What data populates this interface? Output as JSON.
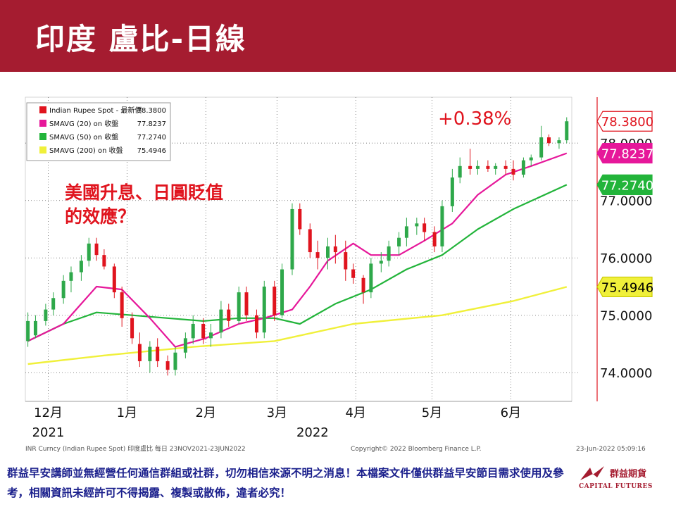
{
  "slide": {
    "title": "印度 盧比-日線",
    "annotation_lines": [
      "美國升息、日圓貶值",
      "的效應？"
    ],
    "pct_change": "+0.38%"
  },
  "footer": {
    "disclaimer": "群益早安講師並無經營任何通信群組或社群，切勿相信來源不明之消息！本檔案文件僅供群益早安節目需求使用及參考，相關資訊未經許可不得揭露、複製或散佈，違者必究！",
    "logo_cn": "群益期貨",
    "logo_en": "CAPITAL FUTURES"
  },
  "colors": {
    "brand": "#a51c30",
    "candle_up": "#2ea84a",
    "candle_down": "#e0141e",
    "sma20": "#e6179a",
    "sma50": "#22b43a",
    "sma200": "#f0f03a",
    "disclaimer": "#1a1f8c"
  },
  "chart_data": {
    "type": "candlestick",
    "ylim": [
      73.5,
      78.8
    ],
    "y_ticks": [
      {
        "value": 74.0,
        "label": "74.0000"
      },
      {
        "value": 75.0,
        "label": "75.0000"
      },
      {
        "value": 76.0,
        "label": "76.0000"
      },
      {
        "value": 77.0,
        "label": "77.0000"
      },
      {
        "value": 78.0,
        "label": "78.0000"
      }
    ],
    "x_labels": [
      {
        "date": "2021-12-01",
        "label": "12月"
      },
      {
        "date": "2022-01-01",
        "label": "1月"
      },
      {
        "date": "2022-02-01",
        "label": "2月"
      },
      {
        "date": "2022-03-01",
        "label": "3月"
      },
      {
        "date": "2022-04-01",
        "label": "4月"
      },
      {
        "date": "2022-05-01",
        "label": "5月"
      },
      {
        "date": "2022-06-01",
        "label": "6月"
      }
    ],
    "year_labels": [
      {
        "date": "2021-12-01",
        "label": "2021"
      },
      {
        "date": "2022-03-15",
        "label": "2022"
      }
    ],
    "legend": [
      {
        "name": "Indian Rupee Spot - 最新價",
        "value": "78.3800",
        "color": "#e0141e"
      },
      {
        "name": "SMAVG (20)  on 收盤",
        "value": "77.8237",
        "color": "#e6179a"
      },
      {
        "name": "SMAVG (50)  on 收盤",
        "value": "77.2740",
        "color": "#22b43a"
      },
      {
        "name": "SMAVG (200)  on 收盤",
        "value": "75.4946",
        "color": "#f0f03a"
      }
    ],
    "last_value_tags": [
      {
        "value": 78.38,
        "label": "78.3800",
        "bg": "#ffffff",
        "fg": "#e0141e",
        "border": "#e0141e"
      },
      {
        "value": 77.8237,
        "label": "77.8237",
        "bg": "#e6179a",
        "fg": "#ffffff",
        "border": "#e6179a"
      },
      {
        "value": 77.274,
        "label": "77.2740",
        "bg": "#22b43a",
        "fg": "#ffffff",
        "border": "#22b43a"
      },
      {
        "value": 75.4946,
        "label": "75.4946",
        "bg": "#f0f03a",
        "fg": "#000000",
        "border": "#c8c800"
      }
    ],
    "source_left": "INR Curncy (Indian Rupee Spot) 印度盧比  每日 23NOV2021-23JUN2022",
    "source_mid": "Copyright© 2022 Bloomberg Finance L.P.",
    "source_right": "23-Jun-2022 05:09:16",
    "candles": [
      {
        "date": "2021-11-23",
        "o": 74.55,
        "h": 75.05,
        "l": 74.45,
        "c": 74.9
      },
      {
        "date": "2021-11-26",
        "o": 74.65,
        "h": 75.0,
        "l": 74.6,
        "c": 74.9
      },
      {
        "date": "2021-11-30",
        "o": 74.9,
        "h": 75.2,
        "l": 74.82,
        "c": 75.1
      },
      {
        "date": "2021-12-03",
        "o": 75.1,
        "h": 75.4,
        "l": 75.0,
        "c": 75.3
      },
      {
        "date": "2021-12-07",
        "o": 75.3,
        "h": 75.7,
        "l": 75.2,
        "c": 75.6
      },
      {
        "date": "2021-12-10",
        "o": 75.6,
        "h": 75.85,
        "l": 75.4,
        "c": 75.75
      },
      {
        "date": "2021-12-14",
        "o": 75.75,
        "h": 76.05,
        "l": 75.6,
        "c": 75.95
      },
      {
        "date": "2021-12-17",
        "o": 75.95,
        "h": 76.35,
        "l": 75.85,
        "c": 76.25
      },
      {
        "date": "2021-12-20",
        "o": 76.25,
        "h": 76.35,
        "l": 75.95,
        "c": 76.05
      },
      {
        "date": "2021-12-23",
        "o": 76.05,
        "h": 76.15,
        "l": 75.8,
        "c": 75.85
      },
      {
        "date": "2021-12-27",
        "o": 75.85,
        "h": 75.9,
        "l": 75.3,
        "c": 75.4
      },
      {
        "date": "2021-12-30",
        "o": 75.4,
        "h": 75.5,
        "l": 74.8,
        "c": 74.95
      },
      {
        "date": "2022-01-03",
        "o": 74.95,
        "h": 75.05,
        "l": 74.5,
        "c": 74.6
      },
      {
        "date": "2022-01-06",
        "o": 74.5,
        "h": 74.7,
        "l": 74.1,
        "c": 74.2
      },
      {
        "date": "2022-01-10",
        "o": 74.2,
        "h": 74.55,
        "l": 74.0,
        "c": 74.45
      },
      {
        "date": "2022-01-13",
        "o": 74.45,
        "h": 74.6,
        "l": 74.1,
        "c": 74.2
      },
      {
        "date": "2022-01-17",
        "o": 74.2,
        "h": 74.3,
        "l": 73.95,
        "c": 74.05
      },
      {
        "date": "2022-01-20",
        "o": 74.05,
        "h": 74.45,
        "l": 73.95,
        "c": 74.35
      },
      {
        "date": "2022-01-24",
        "o": 74.35,
        "h": 74.7,
        "l": 74.25,
        "c": 74.6
      },
      {
        "date": "2022-01-27",
        "o": 74.6,
        "h": 75.0,
        "l": 74.5,
        "c": 74.85
      },
      {
        "date": "2022-01-31",
        "o": 74.85,
        "h": 74.95,
        "l": 74.5,
        "c": 74.6
      },
      {
        "date": "2022-02-03",
        "o": 74.6,
        "h": 74.85,
        "l": 74.45,
        "c": 74.7
      },
      {
        "date": "2022-02-07",
        "o": 74.7,
        "h": 75.25,
        "l": 74.6,
        "c": 75.1
      },
      {
        "date": "2022-02-10",
        "o": 75.1,
        "h": 75.2,
        "l": 74.8,
        "c": 74.9
      },
      {
        "date": "2022-02-14",
        "o": 74.9,
        "h": 75.5,
        "l": 74.85,
        "c": 75.4
      },
      {
        "date": "2022-02-17",
        "o": 75.4,
        "h": 75.5,
        "l": 74.9,
        "c": 75.0
      },
      {
        "date": "2022-02-21",
        "o": 75.0,
        "h": 75.1,
        "l": 74.6,
        "c": 74.7
      },
      {
        "date": "2022-02-24",
        "o": 74.7,
        "h": 75.6,
        "l": 74.6,
        "c": 75.5
      },
      {
        "date": "2022-02-28",
        "o": 75.5,
        "h": 75.6,
        "l": 74.9,
        "c": 75.0
      },
      {
        "date": "2022-03-03",
        "o": 75.0,
        "h": 75.9,
        "l": 74.95,
        "c": 75.8
      },
      {
        "date": "2022-03-07",
        "o": 75.8,
        "h": 76.95,
        "l": 75.7,
        "c": 76.85
      },
      {
        "date": "2022-03-10",
        "o": 76.85,
        "h": 76.95,
        "l": 76.4,
        "c": 76.5
      },
      {
        "date": "2022-03-14",
        "o": 76.5,
        "h": 76.6,
        "l": 76.0,
        "c": 76.1
      },
      {
        "date": "2022-03-17",
        "o": 76.1,
        "h": 76.3,
        "l": 75.8,
        "c": 76.0
      },
      {
        "date": "2022-03-21",
        "o": 76.0,
        "h": 76.35,
        "l": 75.8,
        "c": 76.2
      },
      {
        "date": "2022-03-24",
        "o": 76.2,
        "h": 76.4,
        "l": 75.9,
        "c": 76.1
      },
      {
        "date": "2022-03-28",
        "o": 76.1,
        "h": 76.3,
        "l": 75.6,
        "c": 75.8
      },
      {
        "date": "2022-03-31",
        "o": 75.8,
        "h": 75.9,
        "l": 75.55,
        "c": 75.65
      },
      {
        "date": "2022-04-04",
        "o": 75.65,
        "h": 75.7,
        "l": 75.2,
        "c": 75.4
      },
      {
        "date": "2022-04-07",
        "o": 75.4,
        "h": 76.0,
        "l": 75.3,
        "c": 75.9
      },
      {
        "date": "2022-04-11",
        "o": 75.9,
        "h": 76.1,
        "l": 75.75,
        "c": 75.95
      },
      {
        "date": "2022-04-14",
        "o": 75.95,
        "h": 76.3,
        "l": 75.85,
        "c": 76.2
      },
      {
        "date": "2022-04-18",
        "o": 76.2,
        "h": 76.45,
        "l": 76.05,
        "c": 76.35
      },
      {
        "date": "2022-04-21",
        "o": 76.35,
        "h": 76.7,
        "l": 76.2,
        "c": 76.55
      },
      {
        "date": "2022-04-25",
        "o": 76.55,
        "h": 76.7,
        "l": 76.4,
        "c": 76.6
      },
      {
        "date": "2022-04-28",
        "o": 76.6,
        "h": 76.7,
        "l": 76.3,
        "c": 76.45
      },
      {
        "date": "2022-05-02",
        "o": 76.45,
        "h": 76.55,
        "l": 76.1,
        "c": 76.2
      },
      {
        "date": "2022-05-05",
        "o": 76.2,
        "h": 77.0,
        "l": 76.1,
        "c": 76.9
      },
      {
        "date": "2022-05-09",
        "o": 76.9,
        "h": 77.55,
        "l": 76.8,
        "c": 77.4
      },
      {
        "date": "2022-05-12",
        "o": 77.4,
        "h": 77.75,
        "l": 77.3,
        "c": 77.6
      },
      {
        "date": "2022-05-16",
        "o": 77.6,
        "h": 77.9,
        "l": 77.45,
        "c": 77.55
      },
      {
        "date": "2022-05-19",
        "o": 77.55,
        "h": 77.7,
        "l": 77.45,
        "c": 77.6
      },
      {
        "date": "2022-05-23",
        "o": 77.6,
        "h": 77.7,
        "l": 77.5,
        "c": 77.55
      },
      {
        "date": "2022-05-26",
        "o": 77.55,
        "h": 77.65,
        "l": 77.45,
        "c": 77.6
      },
      {
        "date": "2022-05-30",
        "o": 77.6,
        "h": 77.7,
        "l": 77.45,
        "c": 77.55
      },
      {
        "date": "2022-06-02",
        "o": 77.55,
        "h": 77.7,
        "l": 77.35,
        "c": 77.45
      },
      {
        "date": "2022-06-06",
        "o": 77.45,
        "h": 77.75,
        "l": 77.4,
        "c": 77.7
      },
      {
        "date": "2022-06-09",
        "o": 77.7,
        "h": 77.8,
        "l": 77.6,
        "c": 77.75
      },
      {
        "date": "2022-06-13",
        "o": 77.75,
        "h": 78.3,
        "l": 77.7,
        "c": 78.1
      },
      {
        "date": "2022-06-16",
        "o": 78.1,
        "h": 78.15,
        "l": 77.95,
        "c": 78.0
      },
      {
        "date": "2022-06-20",
        "o": 78.0,
        "h": 78.1,
        "l": 77.9,
        "c": 78.05
      },
      {
        "date": "2022-06-23",
        "o": 78.05,
        "h": 78.45,
        "l": 78.0,
        "c": 78.38
      }
    ],
    "sma20": [
      {
        "date": "2021-11-23",
        "v": 74.55
      },
      {
        "date": "2021-12-07",
        "v": 74.85
      },
      {
        "date": "2021-12-14",
        "v": 75.2
      },
      {
        "date": "2021-12-20",
        "v": 75.5
      },
      {
        "date": "2021-12-30",
        "v": 75.45
      },
      {
        "date": "2022-01-10",
        "v": 74.95
      },
      {
        "date": "2022-01-20",
        "v": 74.45
      },
      {
        "date": "2022-02-01",
        "v": 74.6
      },
      {
        "date": "2022-02-14",
        "v": 74.85
      },
      {
        "date": "2022-02-24",
        "v": 74.95
      },
      {
        "date": "2022-03-07",
        "v": 75.1
      },
      {
        "date": "2022-03-14",
        "v": 75.5
      },
      {
        "date": "2022-03-21",
        "v": 75.95
      },
      {
        "date": "2022-03-31",
        "v": 76.25
      },
      {
        "date": "2022-04-07",
        "v": 76.05
      },
      {
        "date": "2022-04-18",
        "v": 76.05
      },
      {
        "date": "2022-04-28",
        "v": 76.3
      },
      {
        "date": "2022-05-09",
        "v": 76.6
      },
      {
        "date": "2022-05-19",
        "v": 77.1
      },
      {
        "date": "2022-05-30",
        "v": 77.45
      },
      {
        "date": "2022-06-09",
        "v": 77.6
      },
      {
        "date": "2022-06-23",
        "v": 77.8237
      }
    ],
    "sma50": [
      {
        "date": "2021-11-23",
        "v": 74.55
      },
      {
        "date": "2021-12-07",
        "v": 74.85
      },
      {
        "date": "2021-12-20",
        "v": 75.05
      },
      {
        "date": "2022-01-03",
        "v": 75.0
      },
      {
        "date": "2022-01-17",
        "v": 74.95
      },
      {
        "date": "2022-01-31",
        "v": 74.9
      },
      {
        "date": "2022-02-14",
        "v": 74.95
      },
      {
        "date": "2022-02-28",
        "v": 74.95
      },
      {
        "date": "2022-03-10",
        "v": 74.85
      },
      {
        "date": "2022-03-24",
        "v": 75.2
      },
      {
        "date": "2022-04-07",
        "v": 75.45
      },
      {
        "date": "2022-04-21",
        "v": 75.8
      },
      {
        "date": "2022-05-05",
        "v": 76.05
      },
      {
        "date": "2022-05-19",
        "v": 76.5
      },
      {
        "date": "2022-06-02",
        "v": 76.85
      },
      {
        "date": "2022-06-23",
        "v": 77.274
      }
    ],
    "sma200": [
      {
        "date": "2021-11-23",
        "v": 74.15
      },
      {
        "date": "2021-12-23",
        "v": 74.3
      },
      {
        "date": "2022-01-27",
        "v": 74.45
      },
      {
        "date": "2022-02-28",
        "v": 74.55
      },
      {
        "date": "2022-03-31",
        "v": 74.85
      },
      {
        "date": "2022-05-05",
        "v": 75.0
      },
      {
        "date": "2022-06-02",
        "v": 75.25
      },
      {
        "date": "2022-06-23",
        "v": 75.4946
      }
    ]
  }
}
